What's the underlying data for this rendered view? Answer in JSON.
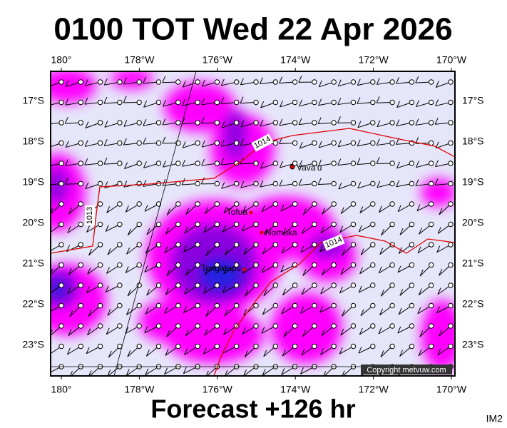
{
  "title": "0100 TOT Wed 22 Apr 2026",
  "footer": "Forecast +126 hr",
  "corner_label": "IM2",
  "copyright": "Copyright metvuw.com",
  "longitude_labels": [
    "180°",
    "178°W",
    "176°W",
    "174°W",
    "172°W",
    "170°W"
  ],
  "latitude_labels": [
    "17°S",
    "18°S",
    "19°S",
    "20°S",
    "21°S",
    "22°S",
    "23°S"
  ],
  "places": [
    "Vava'u",
    "Tofua",
    "Nomuka",
    "Tongatapu"
  ],
  "isobar_labels": [
    "1014",
    "1013",
    "1014"
  ]
}
